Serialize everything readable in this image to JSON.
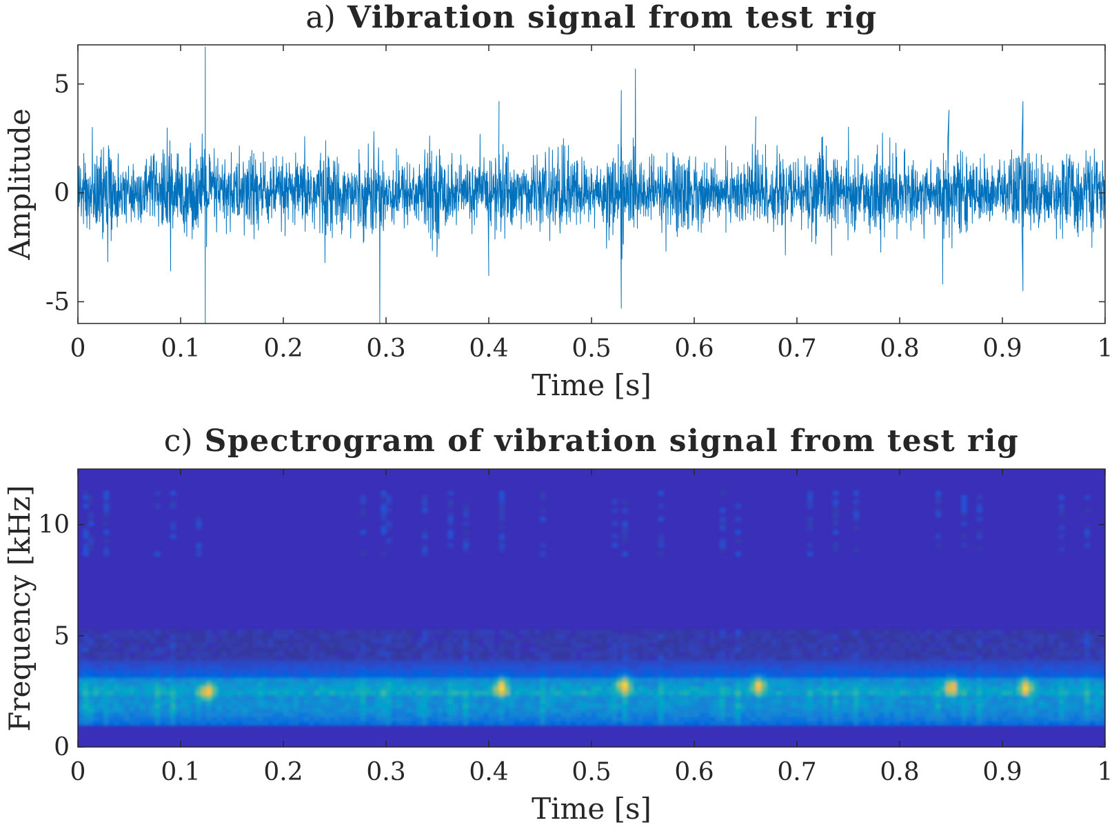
{
  "chart_data": [
    {
      "id": "vibration",
      "type": "line",
      "title_prefix": "a)",
      "title_main": "Vibration signal from test rig",
      "xlabel": "Time [s]",
      "ylabel": "Amplitude",
      "xlim": [
        0,
        1
      ],
      "ylim": [
        -6,
        6.8
      ],
      "x_ticks": [
        0,
        0.1,
        0.2,
        0.3,
        0.4,
        0.5,
        0.6,
        0.7,
        0.8,
        0.9,
        1
      ],
      "x_tick_labels": [
        "0",
        "0.1",
        "0.2",
        "0.3",
        "0.4",
        "0.5",
        "0.6",
        "0.7",
        "0.8",
        "0.9",
        "1"
      ],
      "y_ticks": [
        -5,
        0,
        5
      ],
      "y_tick_labels": [
        "-5",
        "0",
        "5"
      ],
      "series": [
        {
          "name": "vibration signal",
          "color": "#0072BD",
          "description_stats": {
            "envelope_upper_typical": 2.0,
            "envelope_lower_typical": -2.0,
            "peaks": [
              {
                "x": 0.124,
                "y": 6.7
              },
              {
                "x": 0.124,
                "y": -6.0
              },
              {
                "x": 0.529,
                "y": 4.7
              },
              {
                "x": 0.529,
                "y": -5.3
              },
              {
                "x": 0.41,
                "y": 4.2
              },
              {
                "x": 0.848,
                "y": 3.8
              },
              {
                "x": 0.92,
                "y": 4.2
              },
              {
                "x": 0.92,
                "y": -4.5
              },
              {
                "x": 0.66,
                "y": 3.5
              },
              {
                "x": 0.4,
                "y": -3.8
              }
            ]
          }
        }
      ]
    },
    {
      "id": "spectrogram",
      "type": "heatmap",
      "title_prefix": "c)",
      "title_main": "Spectrogram of vibration signal from test rig",
      "xlabel": "Time [s]",
      "ylabel": "Frequency [kHz]",
      "xlim": [
        0,
        1
      ],
      "ylim": [
        0,
        12.5
      ],
      "x_ticks": [
        0,
        0.1,
        0.2,
        0.3,
        0.4,
        0.5,
        0.6,
        0.7,
        0.8,
        0.9,
        1
      ],
      "x_tick_labels": [
        "0",
        "0.1",
        "0.2",
        "0.3",
        "0.4",
        "0.5",
        "0.6",
        "0.7",
        "0.8",
        "0.9",
        "1"
      ],
      "y_ticks": [
        0,
        5,
        10
      ],
      "y_tick_labels": [
        "0",
        "5",
        "10"
      ],
      "colormap": "parula",
      "background_color": "#3a2fb8",
      "energy_band_kHz": [
        0.8,
        3.8
      ],
      "hot_spots": [
        {
          "t": 0.124,
          "f": 2.4
        },
        {
          "t": 0.41,
          "f": 2.6
        },
        {
          "t": 0.66,
          "f": 2.7
        },
        {
          "t": 0.92,
          "f": 2.6
        },
        {
          "t": 0.848,
          "f": 2.6
        },
        {
          "t": 0.529,
          "f": 2.7
        }
      ]
    }
  ]
}
